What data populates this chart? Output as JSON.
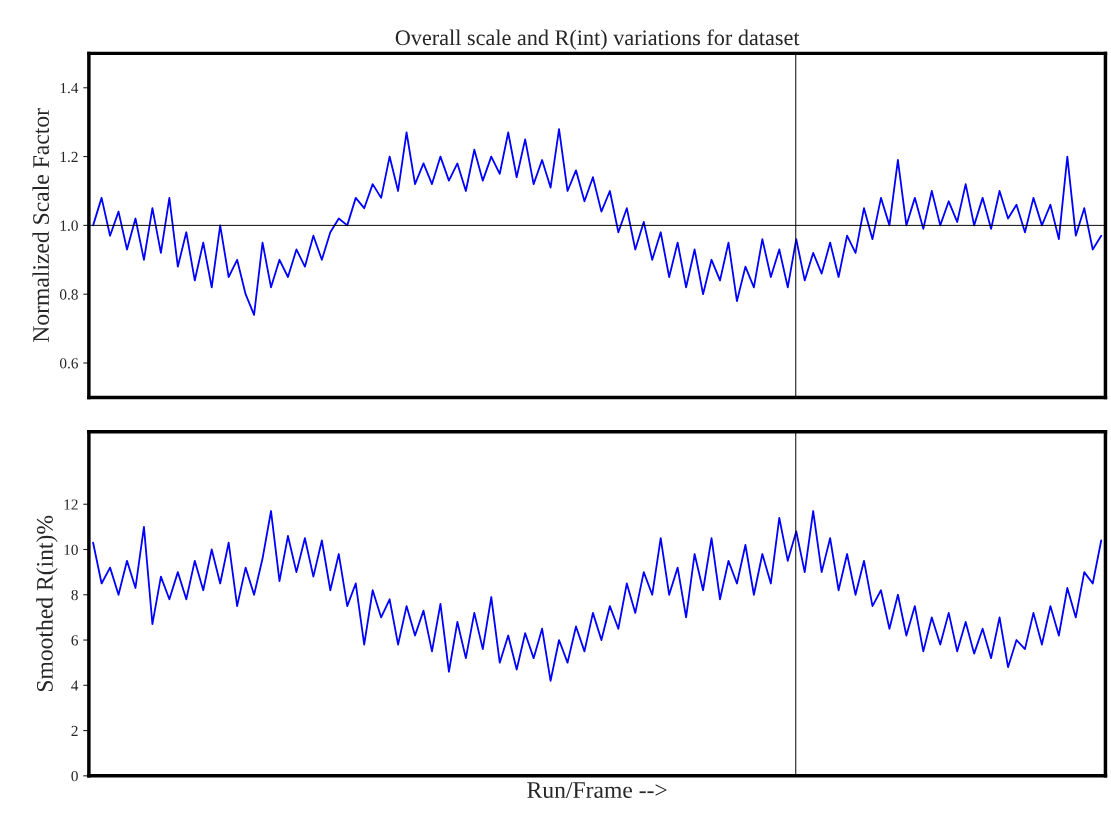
{
  "chart_data": [
    {
      "type": "line",
      "title": "Overall scale and R(int) variations for dataset",
      "ylabel": "Normalized Scale Factor",
      "categories": [
        null,
        null,
        null,
        null,
        null,
        null,
        null,
        null,
        null,
        null,
        null,
        null,
        null,
        null,
        null,
        null,
        null,
        null,
        null,
        null,
        null,
        null,
        null,
        null,
        null,
        null,
        null,
        null,
        null,
        null,
        null,
        null,
        null,
        null,
        null,
        null,
        null,
        null,
        null,
        null,
        null,
        null,
        null,
        null,
        null,
        null,
        null,
        null,
        null,
        null,
        null,
        null,
        null,
        null,
        null,
        null,
        null,
        null,
        null,
        null,
        null,
        null,
        null,
        null,
        null,
        null,
        null,
        null,
        null,
        null,
        null,
        null,
        null,
        null,
        null,
        null,
        null,
        null,
        null,
        null,
        null,
        null,
        null,
        null,
        null,
        null,
        null,
        null,
        null,
        null,
        null,
        null,
        null,
        null,
        null,
        null,
        null,
        null,
        null,
        null,
        null,
        null,
        null,
        null,
        null,
        null,
        null,
        null,
        null,
        null,
        null,
        null,
        null,
        null,
        null,
        null,
        null,
        null,
        null,
        null
      ],
      "series": [
        {
          "color": "#0000ff",
          "values": [
            1.0,
            1.08,
            0.97,
            1.04,
            0.93,
            1.02,
            0.9,
            1.05,
            0.92,
            1.08,
            0.88,
            0.98,
            0.84,
            0.95,
            0.82,
            1.0,
            0.85,
            0.9,
            0.8,
            0.74,
            0.95,
            0.82,
            0.9,
            0.85,
            0.93,
            0.88,
            0.97,
            0.9,
            0.98,
            1.02,
            1.0,
            1.08,
            1.05,
            1.12,
            1.08,
            1.2,
            1.1,
            1.27,
            1.12,
            1.18,
            1.12,
            1.2,
            1.13,
            1.18,
            1.1,
            1.22,
            1.13,
            1.2,
            1.15,
            1.27,
            1.14,
            1.25,
            1.12,
            1.19,
            1.11,
            1.28,
            1.1,
            1.16,
            1.07,
            1.14,
            1.04,
            1.1,
            0.98,
            1.05,
            0.93,
            1.01,
            0.9,
            0.98,
            0.85,
            0.95,
            0.82,
            0.93,
            0.8,
            0.9,
            0.84,
            0.95,
            0.78,
            0.88,
            0.82,
            0.96,
            0.85,
            0.93,
            0.82,
            0.96,
            0.84,
            0.92,
            0.86,
            0.95,
            0.85,
            0.97,
            0.92,
            1.05,
            0.96,
            1.08,
            1.0,
            1.19,
            1.0,
            1.08,
            0.99,
            1.1,
            1.0,
            1.07,
            1.01,
            1.12,
            1.0,
            1.08,
            0.99,
            1.1,
            1.02,
            1.06,
            0.98,
            1.08,
            1.0,
            1.06,
            0.96,
            1.2,
            0.97,
            1.05,
            0.93,
            0.97
          ]
        }
      ],
      "ylim": [
        0.5,
        1.5
      ],
      "yticks": [
        0.6,
        0.8,
        {
          "value": 1,
          "label": "1.0"
        },
        1.2,
        1.4
      ],
      "tick_labels": "y",
      "ref_lines": [
        {
          "axis": "y",
          "value": 1.0,
          "color": "#000000"
        }
      ]
    },
    {
      "type": "line",
      "xlabel": "Run/Frame -->",
      "ylabel": "Smoothed R(int)%",
      "categories": [
        null,
        null,
        null,
        null,
        null,
        null,
        null,
        null,
        null,
        null,
        null,
        null,
        null,
        null,
        null,
        null,
        null,
        null,
        null,
        null,
        null,
        null,
        null,
        null,
        null,
        null,
        null,
        null,
        null,
        null,
        null,
        null,
        null,
        null,
        null,
        null,
        null,
        null,
        null,
        null,
        null,
        null,
        null,
        null,
        null,
        null,
        null,
        null,
        null,
        null,
        null,
        null,
        null,
        null,
        null,
        null,
        null,
        null,
        null,
        null,
        null,
        null,
        null,
        null,
        null,
        null,
        null,
        null,
        null,
        null,
        null,
        null,
        null,
        null,
        null,
        null,
        null,
        null,
        null,
        null,
        null,
        null,
        null,
        null,
        null,
        null,
        null,
        null,
        null,
        null,
        null,
        null,
        null,
        null,
        null,
        null,
        null,
        null,
        null,
        null,
        null,
        null,
        null,
        null,
        null,
        null,
        null,
        null,
        null,
        null,
        null,
        null,
        null,
        null,
        null,
        null,
        null,
        null,
        null,
        null
      ],
      "series": [
        {
          "color": "#0000ff",
          "values": [
            10.3,
            8.5,
            9.2,
            8.0,
            9.5,
            8.3,
            11.0,
            6.7,
            8.8,
            7.8,
            9.0,
            7.8,
            9.5,
            8.2,
            10.0,
            8.5,
            10.3,
            7.5,
            9.2,
            8.0,
            9.6,
            11.7,
            8.6,
            10.6,
            9.0,
            10.5,
            8.8,
            10.4,
            8.2,
            9.8,
            7.5,
            8.5,
            5.8,
            8.2,
            7.0,
            7.8,
            5.8,
            7.5,
            6.2,
            7.3,
            5.5,
            7.6,
            4.6,
            6.8,
            5.2,
            7.2,
            5.6,
            7.9,
            5.0,
            6.2,
            4.7,
            6.3,
            5.2,
            6.5,
            4.2,
            6.0,
            5.0,
            6.6,
            5.5,
            7.2,
            6.0,
            7.5,
            6.5,
            8.5,
            7.2,
            9.0,
            8.0,
            10.5,
            8.0,
            9.2,
            7.0,
            9.8,
            8.2,
            10.5,
            7.8,
            9.5,
            8.5,
            10.2,
            8.0,
            9.8,
            8.5,
            11.4,
            9.5,
            10.8,
            9.0,
            11.7,
            9.0,
            10.5,
            8.2,
            9.8,
            8.0,
            9.5,
            7.5,
            8.2,
            6.5,
            8.0,
            6.2,
            7.5,
            5.5,
            7.0,
            5.8,
            7.2,
            5.5,
            6.8,
            5.4,
            6.5,
            5.2,
            7.0,
            4.8,
            6.0,
            5.6,
            7.2,
            5.8,
            7.5,
            6.2,
            8.3,
            7.0,
            9.0,
            8.5,
            10.4
          ]
        }
      ],
      "ylim": [
        0,
        15.2
      ],
      "yticks": [
        0,
        2,
        4,
        6,
        8,
        10,
        12
      ],
      "tick_labels": "y"
    }
  ]
}
